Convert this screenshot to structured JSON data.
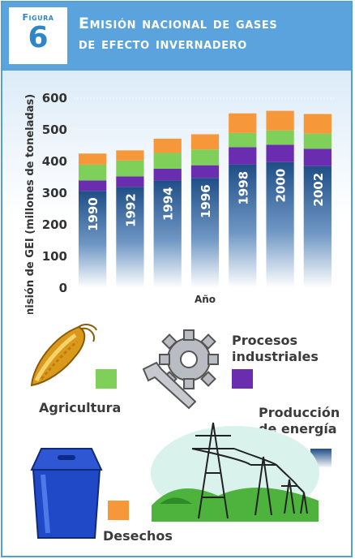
{
  "header": {
    "figure_label": "Figura",
    "figure_number": "6",
    "title_line1": "Emisión nacional de gases",
    "title_line2": "de efecto invernadero"
  },
  "chart_data": {
    "type": "bar",
    "stacked": true,
    "title": "Emisión nacional de gases de efecto invernadero",
    "xlabel": "Año",
    "ylabel": "Emisión de GEI (millones de toneladas)",
    "ylim": [
      0,
      600
    ],
    "yticks": [
      "0",
      "100",
      "200",
      "300",
      "400",
      "500",
      "600"
    ],
    "grid": true,
    "categories": [
      "1990",
      "1992",
      "1994",
      "1996",
      "1998",
      "2000",
      "2002"
    ],
    "series": [
      {
        "name": "Producción de energía",
        "color": "#3a6ea5",
        "values": [
          307,
          320,
          340,
          348,
          390,
          398,
          385
        ]
      },
      {
        "name": "Procesos industriales",
        "color": "#6a2db0",
        "values": [
          33,
          33,
          37,
          40,
          55,
          55,
          55
        ]
      },
      {
        "name": "Agricultura",
        "color": "#7fd05a",
        "values": [
          50,
          50,
          50,
          50,
          45,
          45,
          48
        ]
      },
      {
        "name": "Desechos",
        "color": "#f6973a",
        "values": [
          35,
          32,
          45,
          48,
          62,
          62,
          62
        ]
      }
    ]
  },
  "legend": {
    "agricultura": "Agricultura",
    "procesos_line1": "Procesos",
    "procesos_line2": "industriales",
    "produccion_line1": "Producción",
    "produccion_line2": "de energía",
    "desechos": "Desechos"
  },
  "icons": [
    "corn-icon",
    "gear-wrench-icon",
    "power-tower-icon",
    "waste-bin-icon"
  ]
}
